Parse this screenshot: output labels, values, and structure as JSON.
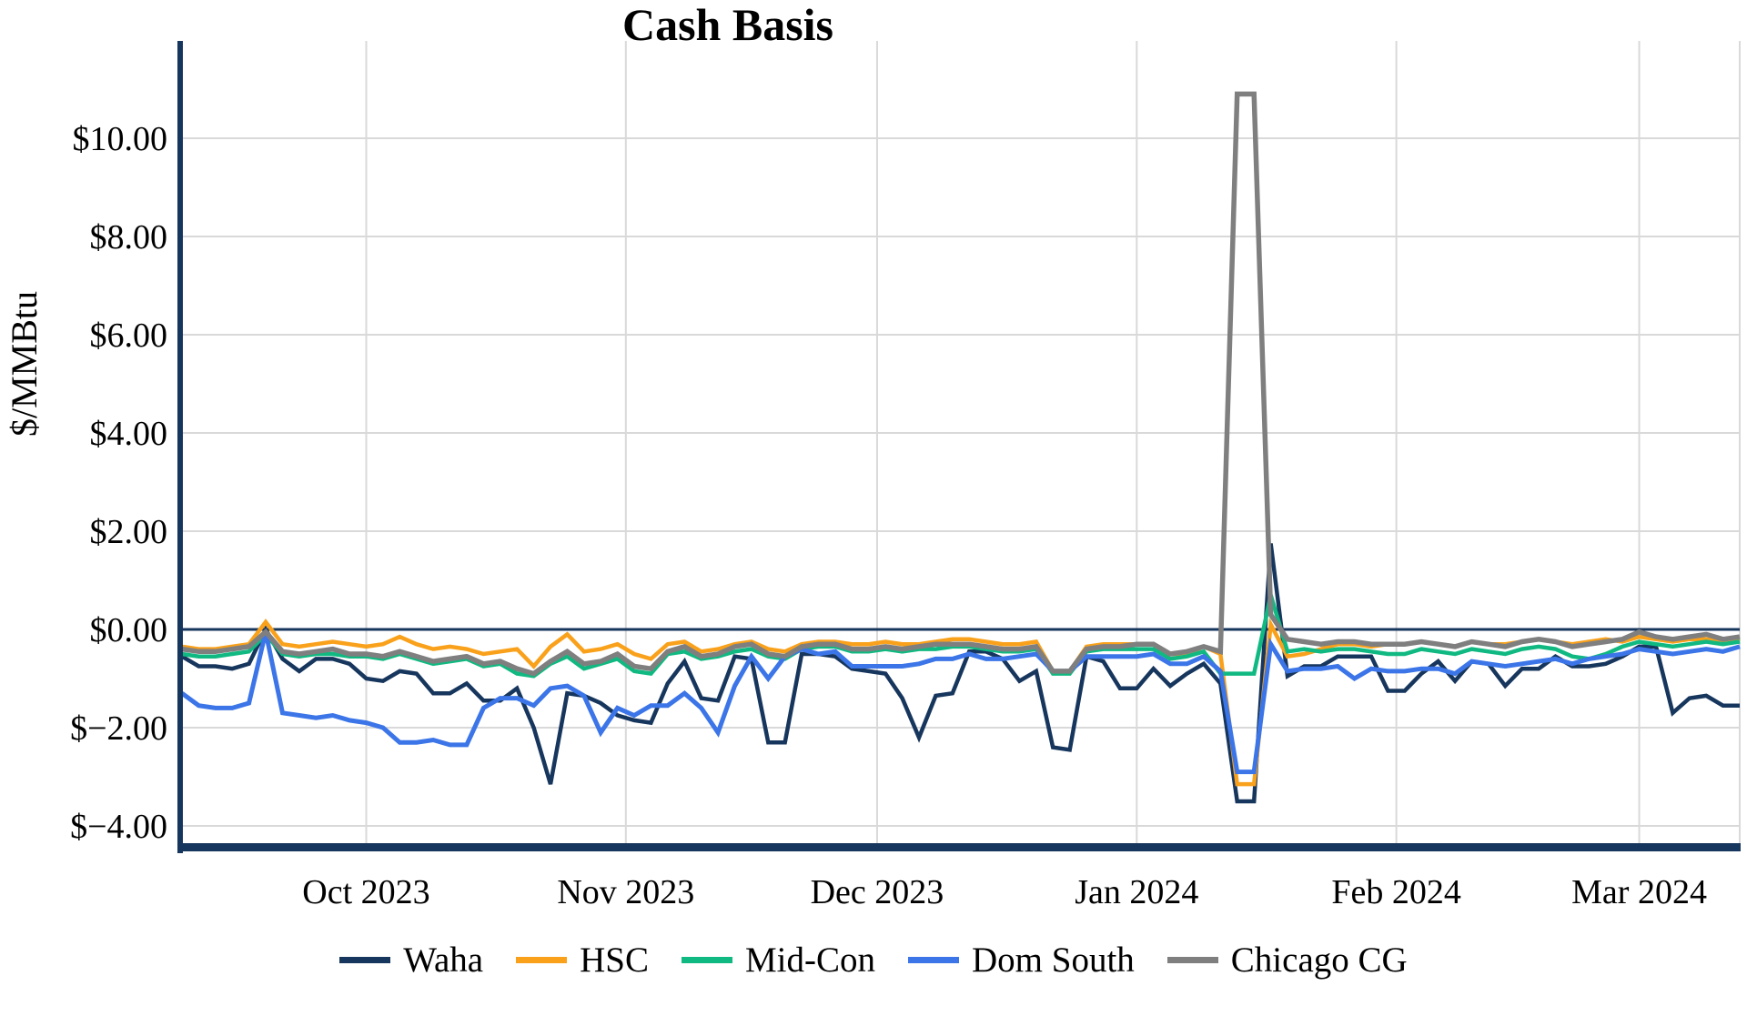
{
  "title": "Cash Basis",
  "y_axis": {
    "label": "$/MMBtu",
    "ticks": [
      {
        "label": "$10.00",
        "value": 10
      },
      {
        "label": "$8.00",
        "value": 8
      },
      {
        "label": "$6.00",
        "value": 6
      },
      {
        "label": "$4.00",
        "value": 4
      },
      {
        "label": "$2.00",
        "value": 2
      },
      {
        "label": "$0.00",
        "value": 0
      },
      {
        "label": "$−2.00",
        "value": -2
      },
      {
        "label": "$−4.00",
        "value": -4
      }
    ]
  },
  "x_axis": {
    "ticks": [
      {
        "label": "Oct 2023",
        "day": 22
      },
      {
        "label": "Nov 2023",
        "day": 53
      },
      {
        "label": "Dec 2023",
        "day": 83
      },
      {
        "label": "Jan 2024",
        "day": 114
      },
      {
        "label": "Feb 2024",
        "day": 145
      },
      {
        "label": "Mar 2024",
        "day": 174
      }
    ],
    "day_max": 186,
    "right_edge_gridline": true
  },
  "colors": {
    "axis": "#17365d",
    "grid": "#d9d9d9",
    "zero_line": "#17365d",
    "background": "#ffffff"
  },
  "chart_data": {
    "type": "line",
    "title": "Cash Basis",
    "ylabel": "$/MMBtu",
    "xlabel": "",
    "ylim": [
      -4.4,
      12.0
    ],
    "x_start_date": "2023-09-09",
    "x_step_days": 2,
    "x_tick_labels": [
      "Oct 2023",
      "Nov 2023",
      "Dec 2023",
      "Jan 2024",
      "Feb 2024",
      "Mar 2024"
    ],
    "grid": true,
    "legend_position": "bottom",
    "series": [
      {
        "name": "Waha",
        "color": "#17365d",
        "values": [
          -0.55,
          -0.75,
          -0.75,
          -0.8,
          -0.7,
          0.0,
          -0.6,
          -0.85,
          -0.6,
          -0.6,
          -0.7,
          -1.0,
          -1.05,
          -0.85,
          -0.9,
          -1.3,
          -1.3,
          -1.1,
          -1.45,
          -1.45,
          -1.2,
          -2.0,
          -3.15,
          -1.3,
          -1.35,
          -1.5,
          -1.75,
          -1.85,
          -1.9,
          -1.1,
          -0.65,
          -1.4,
          -1.45,
          -0.55,
          -0.6,
          -2.3,
          -2.3,
          -0.5,
          -0.5,
          -0.55,
          -0.8,
          -0.85,
          -0.9,
          -1.4,
          -2.2,
          -1.35,
          -1.3,
          -0.45,
          -0.45,
          -0.6,
          -1.05,
          -0.85,
          -2.4,
          -2.45,
          -0.55,
          -0.65,
          -1.2,
          -1.2,
          -0.8,
          -1.15,
          -0.9,
          -0.7,
          -1.1,
          -3.5,
          -3.5,
          1.75,
          -0.95,
          -0.75,
          -0.75,
          -0.55,
          -0.55,
          -0.55,
          -1.25,
          -1.25,
          -0.9,
          -0.65,
          -1.05,
          -0.65,
          -0.7,
          -1.15,
          -0.8,
          -0.8,
          -0.55,
          -0.75,
          -0.75,
          -0.7,
          -0.55,
          -0.35,
          -0.35,
          -1.7,
          -1.4,
          -1.35,
          -1.55,
          -1.55
        ]
      },
      {
        "name": "HSC",
        "color": "#f9a11b",
        "values": [
          -0.35,
          -0.4,
          -0.4,
          -0.35,
          -0.3,
          0.15,
          -0.3,
          -0.35,
          -0.3,
          -0.25,
          -0.3,
          -0.35,
          -0.3,
          -0.15,
          -0.3,
          -0.4,
          -0.35,
          -0.4,
          -0.5,
          -0.45,
          -0.4,
          -0.75,
          -0.35,
          -0.1,
          -0.45,
          -0.4,
          -0.3,
          -0.5,
          -0.6,
          -0.3,
          -0.25,
          -0.45,
          -0.4,
          -0.3,
          -0.25,
          -0.4,
          -0.45,
          -0.3,
          -0.25,
          -0.25,
          -0.3,
          -0.3,
          -0.25,
          -0.3,
          -0.3,
          -0.25,
          -0.2,
          -0.2,
          -0.25,
          -0.3,
          -0.3,
          -0.25,
          -0.85,
          -0.85,
          -0.35,
          -0.3,
          -0.3,
          -0.3,
          -0.3,
          -0.5,
          -0.5,
          -0.35,
          -0.5,
          -3.15,
          -3.15,
          0.1,
          -0.55,
          -0.5,
          -0.4,
          -0.3,
          -0.3,
          -0.35,
          -0.3,
          -0.3,
          -0.25,
          -0.3,
          -0.35,
          -0.25,
          -0.3,
          -0.3,
          -0.25,
          -0.2,
          -0.25,
          -0.3,
          -0.25,
          -0.2,
          -0.25,
          -0.15,
          -0.2,
          -0.25,
          -0.2,
          -0.2,
          -0.25,
          -0.2
        ]
      },
      {
        "name": "Mid-Con",
        "color": "#10b981",
        "values": [
          -0.5,
          -0.55,
          -0.55,
          -0.5,
          -0.45,
          -0.1,
          -0.5,
          -0.55,
          -0.5,
          -0.5,
          -0.55,
          -0.55,
          -0.6,
          -0.5,
          -0.6,
          -0.7,
          -0.65,
          -0.6,
          -0.75,
          -0.7,
          -0.9,
          -0.95,
          -0.7,
          -0.55,
          -0.8,
          -0.7,
          -0.6,
          -0.85,
          -0.9,
          -0.5,
          -0.45,
          -0.6,
          -0.55,
          -0.45,
          -0.4,
          -0.55,
          -0.6,
          -0.4,
          -0.35,
          -0.35,
          -0.45,
          -0.45,
          -0.4,
          -0.45,
          -0.4,
          -0.4,
          -0.35,
          -0.35,
          -0.4,
          -0.45,
          -0.45,
          -0.4,
          -0.9,
          -0.9,
          -0.45,
          -0.4,
          -0.4,
          -0.4,
          -0.4,
          -0.6,
          -0.55,
          -0.45,
          -0.9,
          -0.9,
          -0.9,
          0.7,
          -0.45,
          -0.4,
          -0.45,
          -0.4,
          -0.4,
          -0.45,
          -0.5,
          -0.5,
          -0.4,
          -0.45,
          -0.5,
          -0.4,
          -0.45,
          -0.5,
          -0.4,
          -0.35,
          -0.4,
          -0.55,
          -0.6,
          -0.5,
          -0.35,
          -0.25,
          -0.3,
          -0.35,
          -0.3,
          -0.25,
          -0.3,
          -0.25
        ]
      },
      {
        "name": "Dom South",
        "color": "#3b75e8",
        "values": [
          -1.3,
          -1.55,
          -1.6,
          -1.6,
          -1.5,
          -0.05,
          -1.7,
          -1.75,
          -1.8,
          -1.75,
          -1.85,
          -1.9,
          -2.0,
          -2.3,
          -2.3,
          -2.25,
          -2.35,
          -2.35,
          -1.6,
          -1.4,
          -1.4,
          -1.55,
          -1.2,
          -1.15,
          -1.35,
          -2.1,
          -1.6,
          -1.75,
          -1.55,
          -1.55,
          -1.3,
          -1.6,
          -2.1,
          -1.15,
          -0.55,
          -1.0,
          -0.55,
          -0.4,
          -0.5,
          -0.45,
          -0.75,
          -0.75,
          -0.75,
          -0.75,
          -0.7,
          -0.6,
          -0.6,
          -0.5,
          -0.6,
          -0.6,
          -0.55,
          -0.5,
          -0.85,
          -0.85,
          -0.55,
          -0.55,
          -0.55,
          -0.55,
          -0.5,
          -0.7,
          -0.7,
          -0.55,
          -0.85,
          -2.9,
          -2.9,
          -0.3,
          -0.85,
          -0.8,
          -0.8,
          -0.75,
          -1.0,
          -0.8,
          -0.85,
          -0.85,
          -0.8,
          -0.8,
          -0.9,
          -0.65,
          -0.7,
          -0.75,
          -0.7,
          -0.65,
          -0.6,
          -0.7,
          -0.6,
          -0.55,
          -0.5,
          -0.4,
          -0.45,
          -0.5,
          -0.45,
          -0.4,
          -0.45,
          -0.35
        ]
      },
      {
        "name": "Chicago CG",
        "color": "#7f7f7f",
        "values": [
          -0.4,
          -0.45,
          -0.45,
          -0.4,
          -0.35,
          -0.05,
          -0.45,
          -0.5,
          -0.45,
          -0.4,
          -0.5,
          -0.5,
          -0.55,
          -0.45,
          -0.55,
          -0.65,
          -0.6,
          -0.55,
          -0.7,
          -0.65,
          -0.8,
          -0.9,
          -0.65,
          -0.45,
          -0.7,
          -0.65,
          -0.5,
          -0.75,
          -0.8,
          -0.45,
          -0.35,
          -0.55,
          -0.5,
          -0.35,
          -0.3,
          -0.5,
          -0.55,
          -0.35,
          -0.3,
          -0.3,
          -0.4,
          -0.4,
          -0.35,
          -0.4,
          -0.35,
          -0.3,
          -0.3,
          -0.3,
          -0.35,
          -0.4,
          -0.4,
          -0.35,
          -0.85,
          -0.85,
          -0.4,
          -0.35,
          -0.35,
          -0.3,
          -0.3,
          -0.5,
          -0.45,
          -0.35,
          -0.45,
          10.9,
          10.9,
          0.3,
          -0.2,
          -0.25,
          -0.3,
          -0.25,
          -0.25,
          -0.3,
          -0.3,
          -0.3,
          -0.25,
          -0.3,
          -0.35,
          -0.25,
          -0.3,
          -0.35,
          -0.25,
          -0.2,
          -0.25,
          -0.35,
          -0.3,
          -0.25,
          -0.2,
          -0.05,
          -0.15,
          -0.2,
          -0.15,
          -0.1,
          -0.2,
          -0.15
        ]
      }
    ]
  },
  "legend": {
    "items": [
      "Waha",
      "HSC",
      "Mid-Con",
      "Dom South",
      "Chicago CG"
    ]
  }
}
